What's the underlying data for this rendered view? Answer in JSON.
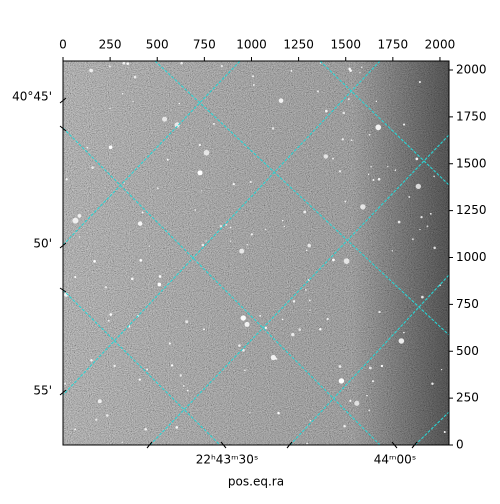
{
  "chart_data": {
    "type": "image",
    "xlim": [
      0,
      2048
    ],
    "ylim": [
      0,
      2048
    ],
    "xticks": [
      0,
      250,
      500,
      750,
      1000,
      1250,
      1500,
      1750,
      2000
    ],
    "yticks": [
      0,
      250,
      500,
      750,
      1000,
      1250,
      1500,
      1750,
      2000
    ],
    "dec_tick_labels": [
      "40°45'",
      "50'",
      "55'"
    ],
    "ra_tick_labels": [
      "22ʰ43ᵐ30ˢ",
      "44ᵐ00ˢ"
    ],
    "xlabel": "pos.eq.ra",
    "grid": true,
    "grid_color": "#2ad4d4"
  }
}
